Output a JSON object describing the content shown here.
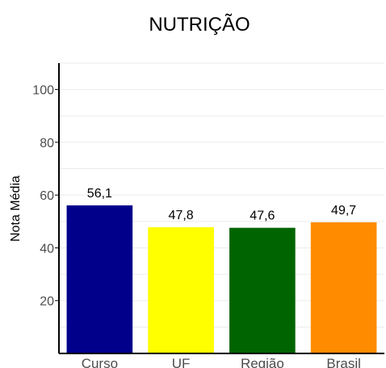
{
  "chart_data": {
    "type": "bar",
    "title": "NUTRIÇÃO",
    "xlabel": "",
    "ylabel": "Nota Média",
    "categories": [
      "Curso",
      "UF",
      "Região",
      "Brasil"
    ],
    "values": [
      56.1,
      47.8,
      47.6,
      49.7
    ],
    "value_labels": [
      "56,1",
      "47,8",
      "47,6",
      "49,7"
    ],
    "colors": [
      "#00008b",
      "#ffff00",
      "#006400",
      "#ff8c00"
    ],
    "ylim": [
      0,
      110
    ],
    "yticks": [
      20,
      40,
      60,
      80,
      100
    ],
    "ytick_labels": [
      "20",
      "40",
      "60",
      "80",
      "100"
    ],
    "grid": true,
    "legend": "none"
  }
}
